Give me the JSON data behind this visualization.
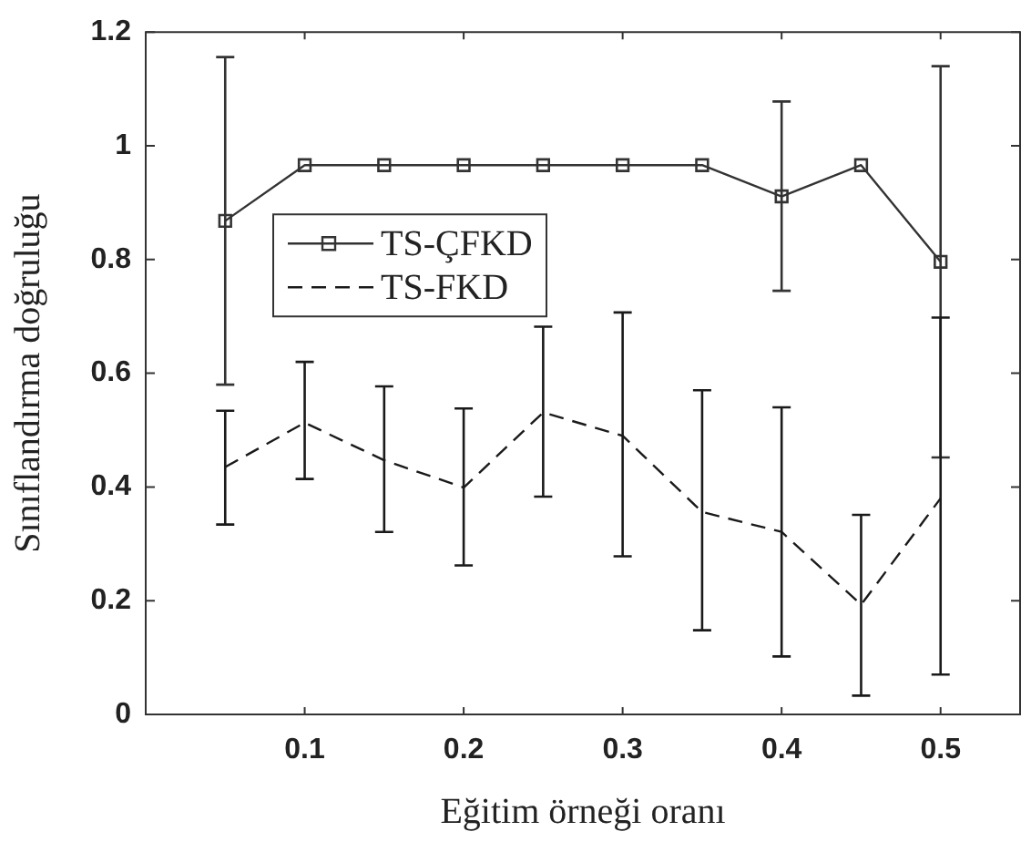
{
  "chart_data": {
    "type": "line",
    "xlabel": "Eğitim örneği oranı",
    "ylabel": "Sınıflandırma doğruluğu",
    "x": [
      0.05,
      0.1,
      0.15,
      0.2,
      0.25,
      0.3,
      0.35,
      0.4,
      0.45,
      0.5
    ],
    "series": [
      {
        "name": "TS-ÇFKD",
        "color": "#333333",
        "marker": "square",
        "line_style": "solid",
        "values": [
          0.868,
          0.966,
          0.966,
          0.966,
          0.966,
          0.966,
          0.966,
          0.911,
          0.966,
          0.796
        ],
        "errors": [
          [
            0.58,
            1.156
          ],
          null,
          null,
          null,
          null,
          null,
          null,
          [
            0.745,
            1.078
          ],
          null,
          [
            0.452,
            1.14
          ]
        ]
      },
      {
        "name": "TS-FKD",
        "color": "#1a1a1a",
        "marker": "none",
        "line_style": "dashed",
        "values": [
          0.435,
          0.513,
          0.447,
          0.399,
          0.531,
          0.49,
          0.356,
          0.321,
          0.193,
          0.38
        ],
        "errors": [
          [
            0.334,
            0.534
          ],
          [
            0.414,
            0.62
          ],
          [
            0.321,
            0.577
          ],
          [
            0.262,
            0.538
          ],
          [
            0.383,
            0.682
          ],
          [
            0.278,
            0.707
          ],
          [
            0.148,
            0.57
          ],
          [
            0.102,
            0.54
          ],
          [
            0.033,
            0.351
          ],
          [
            0.07,
            0.698
          ]
        ]
      }
    ],
    "xlim": [
      0,
      0.55
    ],
    "xticks": [
      0.1,
      0.2,
      0.3,
      0.4,
      0.5
    ],
    "ylim": [
      0,
      1.2
    ],
    "yticks": [
      0,
      0.2,
      0.4,
      0.6,
      0.8,
      1,
      1.2
    ],
    "grid": false,
    "legend": "top left"
  }
}
